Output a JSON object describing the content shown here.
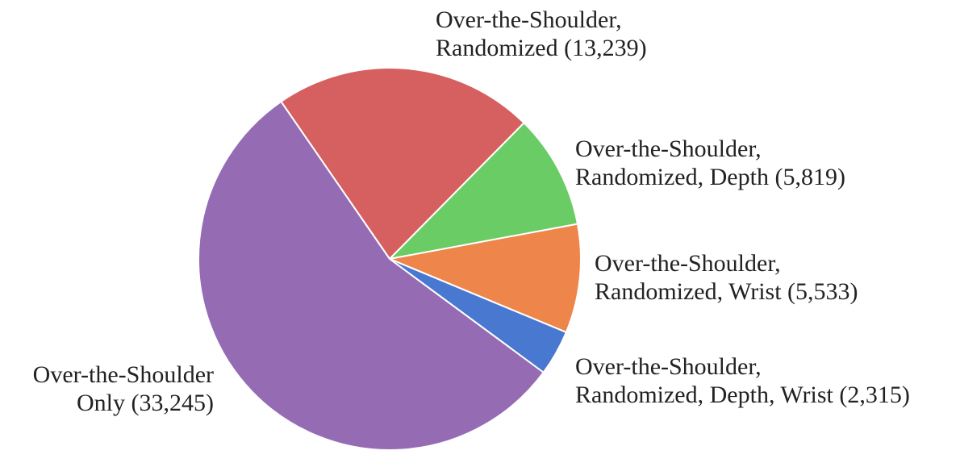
{
  "chart_data": {
    "type": "pie",
    "categories": [
      [
        "Over-the-Shoulder,",
        "Randomized"
      ],
      [
        "Over-the-Shoulder,",
        "Randomized, Depth"
      ],
      [
        "Over-the-Shoulder,",
        "Randomized, Wrist"
      ],
      [
        "Over-the-Shoulder,",
        "Randomized, Depth, Wrist"
      ],
      [
        "Over-the-Shoulder",
        "Only"
      ]
    ],
    "values": [
      13239,
      5819,
      5533,
      2315,
      33245
    ],
    "value_labels": [
      "(13,239)",
      "(5,819)",
      "(5,533)",
      "(2,315)",
      "(33,245)"
    ],
    "colors": [
      "#d65f5f",
      "#6acc64",
      "#ee854a",
      "#4878d0",
      "#956cb4"
    ]
  }
}
